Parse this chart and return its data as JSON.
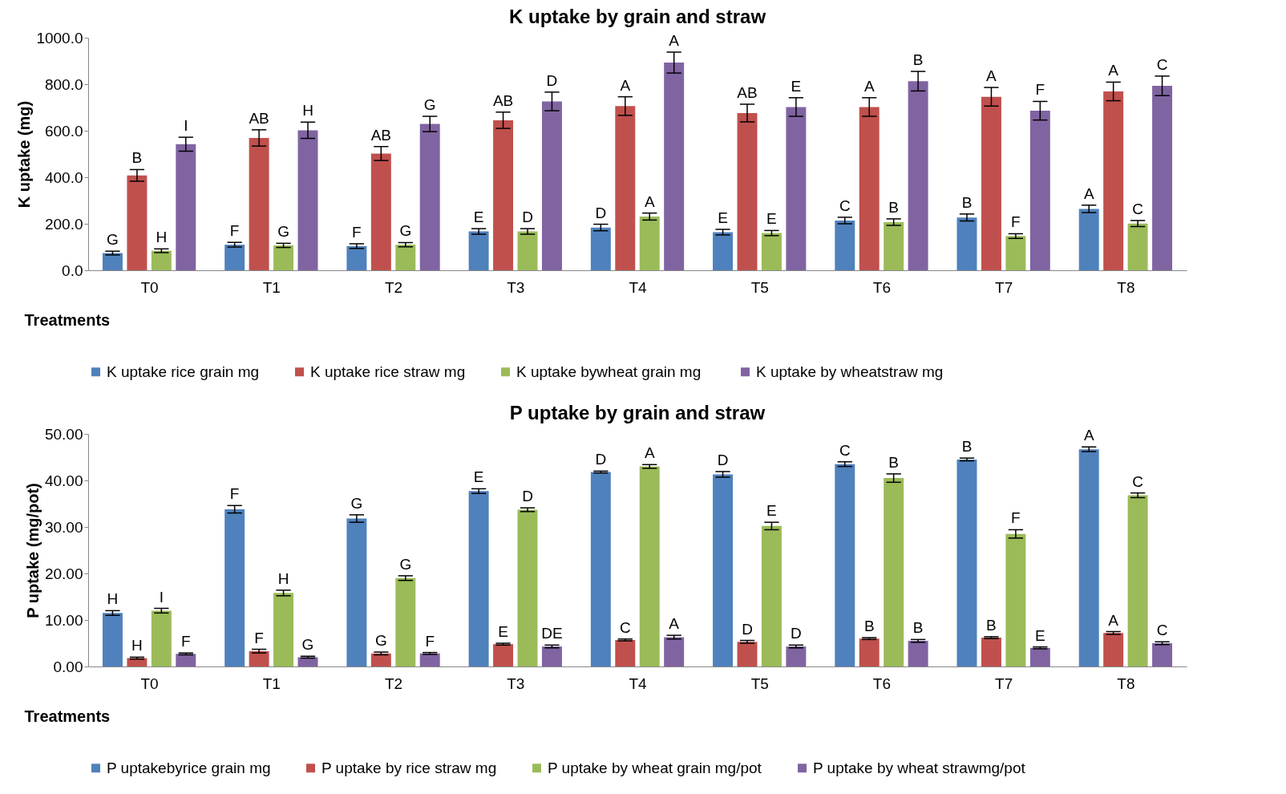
{
  "chart_data": [
    {
      "type": "bar",
      "title": "K uptake by grain and straw",
      "xlabel": "Treatments",
      "ylabel": "K uptake (mg)",
      "categories": [
        "T0",
        "T1",
        "T2",
        "T3",
        "T4",
        "T5",
        "T6",
        "T7",
        "T8"
      ],
      "ylim": [
        0,
        1000
      ],
      "yticks": [
        {
          "value": 0,
          "label": "0.0"
        },
        {
          "value": 200,
          "label": "200.0"
        },
        {
          "value": 400,
          "label": "400.0"
        },
        {
          "value": 600,
          "label": "600.0"
        },
        {
          "value": 800,
          "label": "800.0"
        },
        {
          "value": 1000,
          "label": "1000.0"
        }
      ],
      "grid": false,
      "legend": "bottom",
      "series": [
        {
          "name": "K uptake rice grain mg",
          "color": "#4f81bd",
          "values": [
            74,
            110,
            104,
            167,
            184,
            164,
            214,
            227,
            264
          ],
          "errors": [
            8,
            10,
            10,
            12,
            14,
            12,
            14,
            15,
            16
          ],
          "value_labels": [
            "G",
            "F",
            "F",
            "E",
            "D",
            "E",
            "C",
            "B",
            "A"
          ]
        },
        {
          "name": "K uptake rice straw mg",
          "color": "#c0504d",
          "values": [
            408,
            569,
            502,
            645,
            706,
            676,
            702,
            746,
            769
          ],
          "errors": [
            25,
            35,
            30,
            35,
            40,
            38,
            40,
            40,
            40
          ],
          "value_labels": [
            "B",
            "AB",
            "AB",
            "AB",
            "A",
            "AB",
            "A",
            "A",
            "A"
          ]
        },
        {
          "name": "K uptake  bywheat grain mg",
          "color": "#9bbb59",
          "values": [
            84,
            107,
            110,
            167,
            231,
            160,
            207,
            147,
            201
          ],
          "errors": [
            8,
            9,
            9,
            12,
            15,
            11,
            14,
            10,
            13
          ],
          "value_labels": [
            "H",
            "G",
            "G",
            "D",
            "A",
            "E",
            "B",
            "F",
            "C"
          ]
        },
        {
          "name": "K uptake by  wheatstraw mg",
          "color": "#8064a2",
          "values": [
            542,
            602,
            629,
            726,
            893,
            702,
            813,
            686,
            793
          ],
          "errors": [
            30,
            35,
            33,
            40,
            45,
            40,
            42,
            40,
            42
          ],
          "value_labels": [
            "I",
            "H",
            "G",
            "D",
            "A",
            "E",
            "B",
            "F",
            "C"
          ]
        }
      ]
    },
    {
      "type": "bar",
      "title": "P uptake by grain and straw",
      "xlabel": "Treatments",
      "ylabel": "P uptake (mg/pot)",
      "categories": [
        "T0",
        "T1",
        "T2",
        "T3",
        "T4",
        "T5",
        "T6",
        "T7",
        "T8"
      ],
      "ylim": [
        0,
        50
      ],
      "yticks": [
        {
          "value": 0,
          "label": "0.00"
        },
        {
          "value": 10,
          "label": "10.00"
        },
        {
          "value": 20,
          "label": "20.00"
        },
        {
          "value": 30,
          "label": "30.00"
        },
        {
          "value": 40,
          "label": "40.00"
        },
        {
          "value": 50,
          "label": "50.00"
        }
      ],
      "grid": false,
      "legend": "bottom",
      "series": [
        {
          "name": "P uptakebyrice grain mg",
          "color": "#4f81bd",
          "values": [
            11.5,
            33.8,
            31.8,
            37.7,
            41.8,
            41.3,
            43.5,
            44.5,
            46.7
          ],
          "errors": [
            0.5,
            0.8,
            0.8,
            0.5,
            0.2,
            0.6,
            0.5,
            0.3,
            0.5
          ],
          "value_labels": [
            "H",
            "F",
            "G",
            "E",
            "D",
            "D",
            "C",
            "B",
            "A"
          ]
        },
        {
          "name": "P uptake by rice straw mg",
          "color": "#c0504d",
          "values": [
            1.8,
            3.3,
            2.8,
            4.8,
            5.7,
            5.3,
            6.0,
            6.2,
            7.2
          ],
          "errors": [
            0.2,
            0.4,
            0.3,
            0.2,
            0.2,
            0.3,
            0.2,
            0.2,
            0.3
          ],
          "value_labels": [
            "H",
            "F",
            "G",
            "E",
            "C",
            "D",
            "B",
            "B",
            "A"
          ]
        },
        {
          "name": "P uptake by wheat grain mg/pot",
          "color": "#9bbb59",
          "values": [
            12.0,
            15.8,
            19.0,
            33.7,
            43.0,
            30.2,
            40.5,
            28.5,
            36.8
          ],
          "errors": [
            0.5,
            0.6,
            0.5,
            0.4,
            0.4,
            0.8,
            0.9,
            0.9,
            0.5
          ],
          "value_labels": [
            "I",
            "H",
            "G",
            "D",
            "A",
            "E",
            "B",
            "F",
            "C"
          ]
        },
        {
          "name": "P  uptake by wheat strawmg/pot",
          "color": "#8064a2",
          "values": [
            2.7,
            2.0,
            2.8,
            4.3,
            6.3,
            4.3,
            5.5,
            4.0,
            5.0
          ],
          "errors": [
            0.2,
            0.2,
            0.2,
            0.3,
            0.4,
            0.3,
            0.3,
            0.2,
            0.3
          ],
          "value_labels": [
            "F",
            "G",
            "F",
            "DE",
            "A",
            "D",
            "B",
            "E",
            "C"
          ]
        }
      ]
    }
  ]
}
